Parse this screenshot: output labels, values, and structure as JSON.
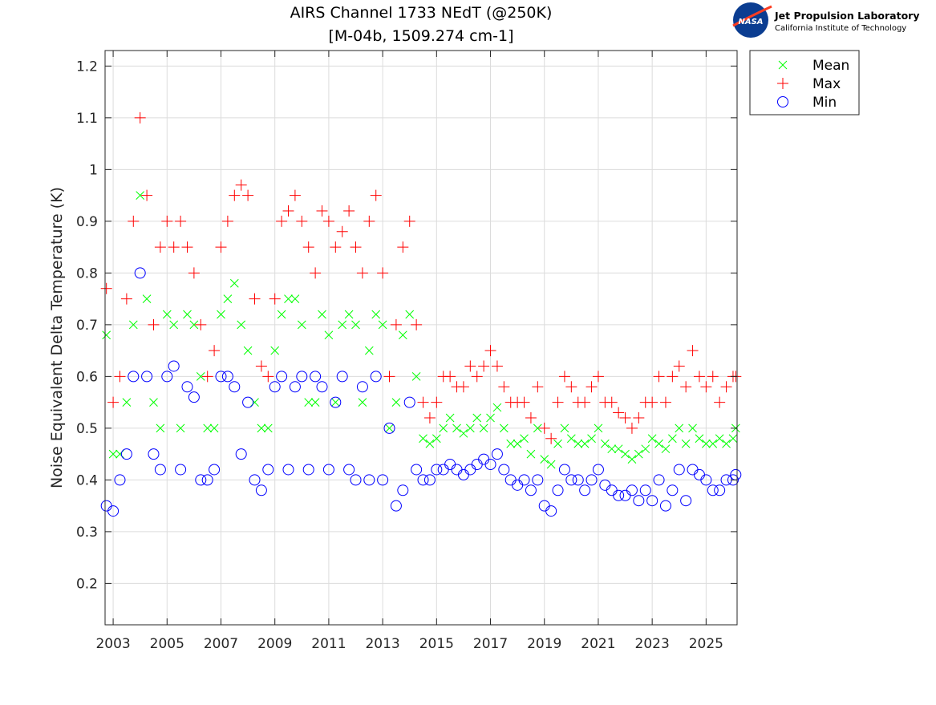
{
  "chart_data": {
    "type": "scatter",
    "title": [
      "AIRS Channel 1733 NEdT (@250K)",
      "[M-04b, 1509.274 cm-1]"
    ],
    "xlabel": "",
    "ylabel": "Noise Equivalent Delta Temperature (K)",
    "xlim": [
      2002.7,
      2026.15
    ],
    "ylim": [
      0.12,
      1.23
    ],
    "xticks": [
      "2003",
      "2005",
      "2007",
      "2009",
      "2011",
      "2013",
      "2015",
      "2017",
      "2019",
      "2021",
      "2023",
      "2025"
    ],
    "yticks": [
      "0.2",
      "0.3",
      "0.4",
      "0.5",
      "0.6",
      "0.7",
      "0.8",
      "0.9",
      "1",
      "1.1",
      "1.2"
    ],
    "grid": true,
    "legend_position": "outside-top-right",
    "x": [
      2002.75,
      2003,
      2003.25,
      2003.5,
      2003.75,
      2004,
      2004.25,
      2004.5,
      2004.75,
      2005,
      2005.25,
      2005.5,
      2005.75,
      2006,
      2006.25,
      2006.5,
      2006.75,
      2007,
      2007.25,
      2007.5,
      2007.75,
      2008,
      2008.25,
      2008.5,
      2008.75,
      2009,
      2009.25,
      2009.5,
      2009.75,
      2010,
      2010.25,
      2010.5,
      2010.75,
      2011,
      2011.25,
      2011.5,
      2011.75,
      2012,
      2012.25,
      2012.5,
      2012.75,
      2013,
      2013.25,
      2013.5,
      2013.75,
      2014,
      2014.25,
      2014.5,
      2014.75,
      2015,
      2015.25,
      2015.5,
      2015.75,
      2016,
      2016.25,
      2016.5,
      2016.75,
      2017,
      2017.25,
      2017.5,
      2017.75,
      2018,
      2018.25,
      2018.5,
      2018.75,
      2019,
      2019.25,
      2019.5,
      2019.75,
      2020,
      2020.25,
      2020.5,
      2020.75,
      2021,
      2021.25,
      2021.5,
      2021.75,
      2022,
      2022.25,
      2022.5,
      2022.75,
      2023,
      2023.25,
      2023.5,
      2023.75,
      2024,
      2024.25,
      2024.5,
      2024.75,
      2025,
      2025.25,
      2025.5,
      2025.75,
      2026,
      2026.1
    ],
    "series": [
      {
        "name": "Mean",
        "marker": "x",
        "color": "#00ff00",
        "values": [
          0.68,
          0.45,
          0.45,
          0.55,
          0.7,
          0.95,
          0.75,
          0.55,
          0.5,
          0.72,
          0.7,
          0.5,
          0.72,
          0.7,
          0.6,
          0.5,
          0.5,
          0.72,
          0.75,
          0.78,
          0.7,
          0.65,
          0.55,
          0.5,
          0.5,
          0.65,
          0.72,
          0.75,
          0.75,
          0.7,
          0.55,
          0.55,
          0.72,
          0.68,
          0.55,
          0.7,
          0.72,
          0.7,
          0.55,
          0.65,
          0.72,
          0.7,
          0.5,
          0.55,
          0.68,
          0.72,
          0.6,
          0.48,
          0.47,
          0.48,
          0.5,
          0.52,
          0.5,
          0.49,
          0.5,
          0.52,
          0.5,
          0.52,
          0.54,
          0.5,
          0.47,
          0.47,
          0.48,
          0.45,
          0.5,
          0.44,
          0.43,
          0.47,
          0.5,
          0.48,
          0.47,
          0.47,
          0.48,
          0.5,
          0.47,
          0.46,
          0.46,
          0.45,
          0.44,
          0.45,
          0.46,
          0.48,
          0.47,
          0.46,
          0.48,
          0.5,
          0.47,
          0.5,
          0.48,
          0.47,
          0.47,
          0.48,
          0.47,
          0.48,
          0.5
        ]
      },
      {
        "name": "Max",
        "marker": "+",
        "color": "#ff0000",
        "values": [
          0.77,
          0.55,
          0.6,
          0.75,
          0.9,
          1.1,
          0.95,
          0.7,
          0.85,
          0.9,
          0.85,
          0.9,
          0.85,
          0.8,
          0.7,
          0.6,
          0.65,
          0.85,
          0.9,
          0.95,
          0.97,
          0.95,
          0.75,
          0.62,
          0.6,
          0.75,
          0.9,
          0.92,
          0.95,
          0.9,
          0.85,
          0.8,
          0.92,
          0.9,
          0.85,
          0.88,
          0.92,
          0.85,
          0.8,
          0.9,
          0.95,
          0.8,
          0.6,
          0.7,
          0.85,
          0.9,
          0.7,
          0.55,
          0.52,
          0.55,
          0.6,
          0.6,
          0.58,
          0.58,
          0.62,
          0.6,
          0.62,
          0.65,
          0.62,
          0.58,
          0.55,
          0.55,
          0.55,
          0.52,
          0.58,
          0.5,
          0.48,
          0.55,
          0.6,
          0.58,
          0.55,
          0.55,
          0.58,
          0.6,
          0.55,
          0.55,
          0.53,
          0.52,
          0.5,
          0.52,
          0.55,
          0.55,
          0.6,
          0.55,
          0.6,
          0.62,
          0.58,
          0.65,
          0.6,
          0.58,
          0.6,
          0.55,
          0.58,
          0.6,
          0.6
        ]
      },
      {
        "name": "Min",
        "marker": "o",
        "color": "#0000ff",
        "values": [
          0.35,
          0.34,
          0.4,
          0.45,
          0.6,
          0.8,
          0.6,
          0.45,
          0.42,
          0.6,
          0.62,
          0.42,
          0.58,
          0.56,
          0.4,
          0.4,
          0.42,
          0.6,
          0.6,
          0.58,
          0.45,
          0.55,
          0.4,
          0.38,
          0.42,
          0.58,
          0.6,
          0.42,
          0.58,
          0.6,
          0.42,
          0.6,
          0.58,
          0.42,
          0.55,
          0.6,
          0.42,
          0.4,
          0.58,
          0.4,
          0.6,
          0.4,
          0.5,
          0.35,
          0.38,
          0.55,
          0.42,
          0.4,
          0.4,
          0.42,
          0.42,
          0.43,
          0.42,
          0.41,
          0.42,
          0.43,
          0.44,
          0.43,
          0.45,
          0.42,
          0.4,
          0.39,
          0.4,
          0.38,
          0.4,
          0.35,
          0.34,
          0.38,
          0.42,
          0.4,
          0.4,
          0.38,
          0.4,
          0.42,
          0.39,
          0.38,
          0.37,
          0.37,
          0.38,
          0.36,
          0.38,
          0.36,
          0.4,
          0.35,
          0.38,
          0.42,
          0.36,
          0.42,
          0.41,
          0.4,
          0.38,
          0.38,
          0.4,
          0.4,
          0.41
        ]
      }
    ]
  },
  "logo": {
    "agency": "NASA",
    "line1": "Jet Propulsion Laboratory",
    "line2": "California Institute of Technology"
  }
}
